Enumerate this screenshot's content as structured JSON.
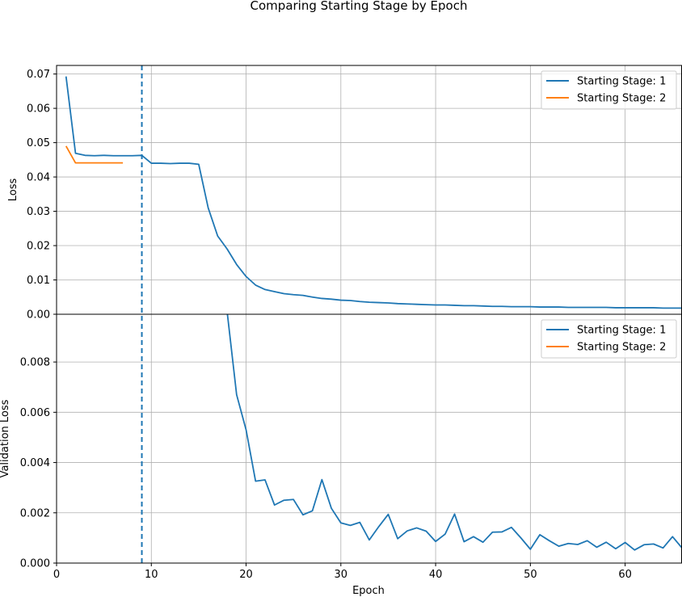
{
  "chart_data": {
    "type": "line",
    "title": "Comparing Starting Stage by Epoch",
    "xlabel": "Epoch",
    "xlim": [
      0,
      66
    ],
    "xticks": [
      "0",
      "10",
      "20",
      "30",
      "40",
      "50",
      "60"
    ],
    "vline_x": 9,
    "colors": {
      "s1": "#1f77b4",
      "s2": "#ff7f0e",
      "grid": "#b0b0b0",
      "vline": "#1f77b4"
    },
    "top": {
      "ylabel": "Loss",
      "ylim": [
        0,
        0.0725
      ],
      "yticks": [
        "0.00",
        "0.01",
        "0.02",
        "0.03",
        "0.04",
        "0.05",
        "0.06",
        "0.07"
      ],
      "legend": [
        "Starting Stage: 1",
        "Starting Stage: 2"
      ],
      "series": [
        {
          "name": "Starting Stage: 1",
          "x": [
            1,
            2,
            3,
            4,
            5,
            6,
            7,
            8,
            9,
            10,
            11,
            12,
            13,
            14,
            15,
            16,
            17,
            18,
            19,
            20,
            21,
            22,
            23,
            24,
            25,
            26,
            27,
            28,
            29,
            30,
            31,
            32,
            33,
            34,
            35,
            36,
            37,
            38,
            39,
            40,
            41,
            42,
            43,
            44,
            45,
            46,
            47,
            48,
            49,
            50,
            51,
            52,
            53,
            54,
            55,
            56,
            57,
            58,
            59,
            60,
            61,
            62,
            63,
            64,
            65,
            66
          ],
          "y": [
            0.0693,
            0.0469,
            0.0463,
            0.0462,
            0.0463,
            0.0462,
            0.0462,
            0.0462,
            0.0463,
            0.044,
            0.044,
            0.0439,
            0.044,
            0.044,
            0.0437,
            0.031,
            0.0228,
            0.019,
            0.0145,
            0.011,
            0.0085,
            0.0072,
            0.0066,
            0.006,
            0.0057,
            0.0055,
            0.005,
            0.0046,
            0.0044,
            0.0041,
            0.004,
            0.0037,
            0.0035,
            0.0034,
            0.0033,
            0.0031,
            0.003,
            0.0029,
            0.0028,
            0.0027,
            0.0027,
            0.0026,
            0.0025,
            0.0025,
            0.0024,
            0.0023,
            0.0023,
            0.0022,
            0.0022,
            0.0022,
            0.0021,
            0.0021,
            0.0021,
            0.002,
            0.002,
            0.002,
            0.002,
            0.002,
            0.0019,
            0.0019,
            0.0019,
            0.0019,
            0.0019,
            0.0018,
            0.0018,
            0.0018
          ]
        },
        {
          "name": "Starting Stage: 2",
          "x": [
            1,
            2,
            3,
            4,
            5,
            6,
            7
          ],
          "y": [
            0.049,
            0.0441,
            0.0441,
            0.0441,
            0.0441,
            0.0441,
            0.0441
          ]
        }
      ]
    },
    "bottom": {
      "ylabel": "Validation Loss",
      "ylim": [
        0,
        0.0099
      ],
      "yticks": [
        "0.000",
        "0.002",
        "0.004",
        "0.006",
        "0.008"
      ],
      "legend": [
        "Starting Stage: 1",
        "Starting Stage: 2"
      ],
      "series": [
        {
          "name": "Starting Stage: 1",
          "x": [
            18,
            19,
            20,
            21,
            22,
            23,
            24,
            25,
            26,
            27,
            28,
            29,
            30,
            31,
            32,
            33,
            34,
            35,
            36,
            37,
            38,
            39,
            40,
            41,
            42,
            43,
            44,
            45,
            46,
            47,
            48,
            49,
            50,
            51,
            52,
            53,
            54,
            55,
            56,
            57,
            58,
            59,
            60,
            61,
            62,
            63,
            64,
            65,
            66
          ],
          "y": [
            0.01,
            0.0067,
            0.0053,
            0.00326,
            0.00331,
            0.00231,
            0.0025,
            0.00253,
            0.00192,
            0.00208,
            0.00332,
            0.00218,
            0.0016,
            0.0015,
            0.00162,
            0.00092,
            0.00145,
            0.00194,
            0.00097,
            0.00128,
            0.0014,
            0.00127,
            0.00086,
            0.00115,
            0.00195,
            0.00085,
            0.00105,
            0.00083,
            0.00123,
            0.00124,
            0.00142,
            0.001,
            0.00055,
            0.00113,
            0.00089,
            0.00067,
            0.00078,
            0.00074,
            0.00089,
            0.00063,
            0.00083,
            0.00057,
            0.00082,
            0.00052,
            0.00073,
            0.00076,
            0.0006,
            0.00105,
            0.0006
          ]
        },
        {
          "name": "Starting Stage: 2",
          "x": [],
          "y": []
        }
      ]
    }
  }
}
